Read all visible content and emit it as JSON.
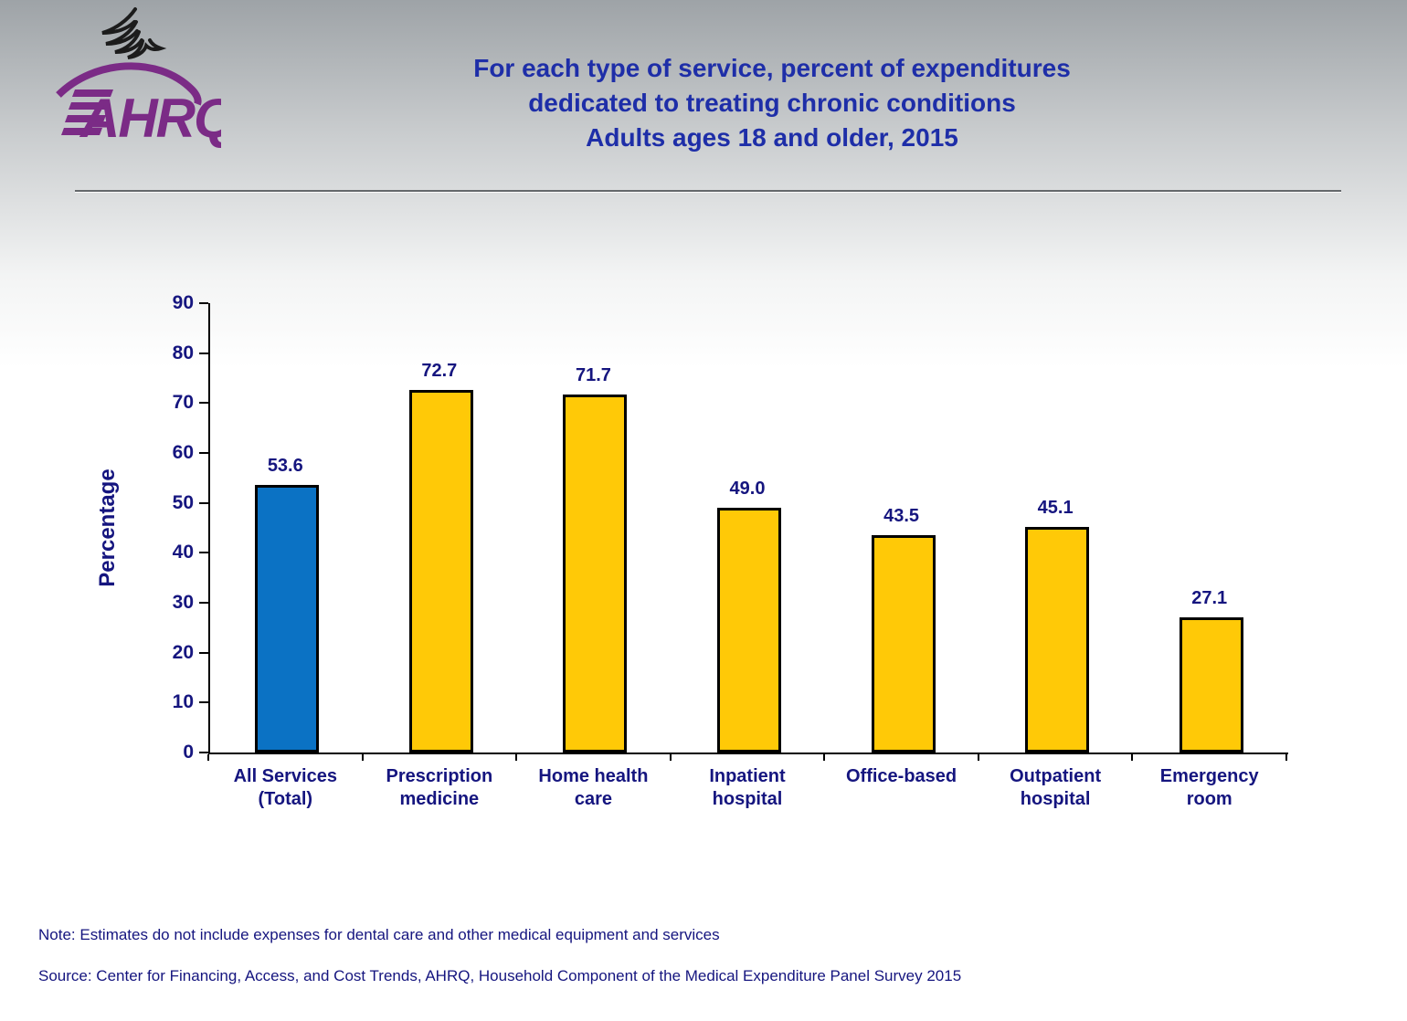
{
  "colors": {
    "navy_text": "#15157f",
    "title_blue": "#1e2ea8",
    "logo_purple": "#7b2b86",
    "eagle_dark": "#1c1c1c",
    "bar_blue": "#0b72c4",
    "bar_yellow": "#ffc907",
    "bar_border": "#000000"
  },
  "header": {
    "title": "For each type of service, percent of expenditures\ndedicated to treating chronic conditions\nAdults ages 18 and older, 2015",
    "logo": {
      "org": "AHRQ"
    }
  },
  "chart_data": {
    "type": "bar",
    "title": "For each type of service, percent of expenditures dedicated to treating chronic conditions, Adults ages 18 and older, 2015",
    "xlabel": "",
    "ylabel": "Percentage",
    "ylim": [
      0,
      90
    ],
    "ytick_interval": 10,
    "grid": false,
    "legend": "none",
    "categories": [
      "All Services\n(Total)",
      "Prescription\nmedicine",
      "Home health\ncare",
      "Inpatient\nhospital",
      "Office-based",
      "Outpatient\nhospital",
      "Emergency\nroom"
    ],
    "values": [
      53.6,
      72.7,
      71.7,
      49.0,
      43.5,
      45.1,
      27.1
    ],
    "value_labels": [
      "53.6",
      "72.7",
      "71.7",
      "49.0",
      "43.5",
      "45.1",
      "27.1"
    ],
    "bar_colors": [
      "#0b72c4",
      "#ffc907",
      "#ffc907",
      "#ffc907",
      "#ffc907",
      "#ffc907",
      "#ffc907"
    ]
  },
  "footer": {
    "note": "Note: Estimates do not include expenses for dental care and other medical equipment and services",
    "source": "Source: Center for Financing, Access, and Cost Trends, AHRQ, Household Component of the Medical Expenditure Panel Survey 2015"
  }
}
